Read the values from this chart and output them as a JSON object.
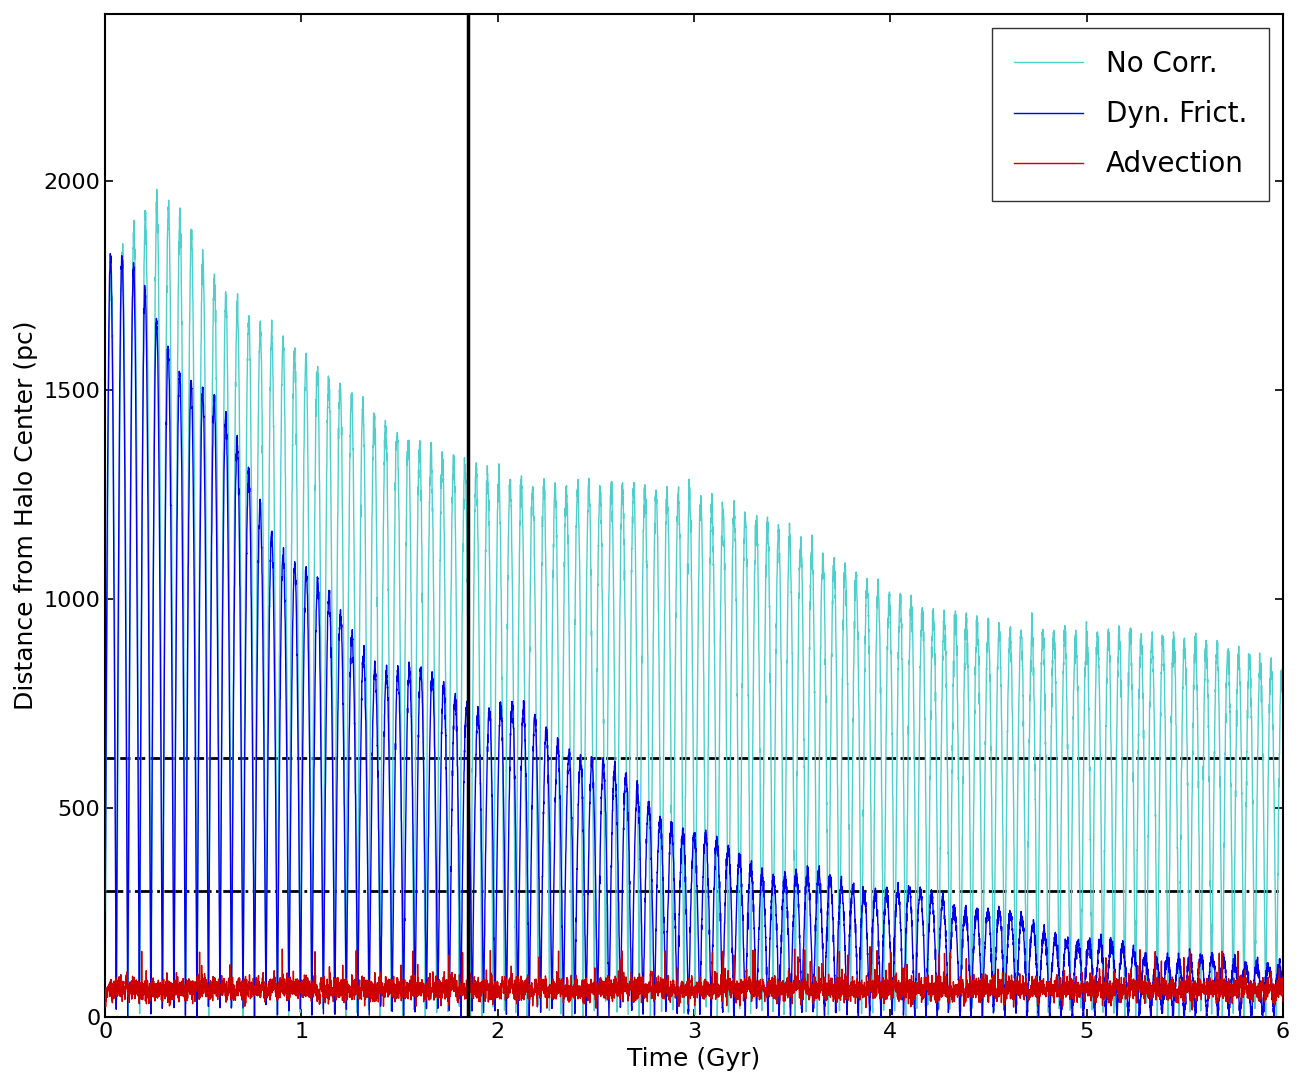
{
  "title": "",
  "xlabel": "Time (Gyr)",
  "ylabel": "Distance from Halo Center (pc)",
  "xlim": [
    0,
    6
  ],
  "ylim": [
    0,
    2400
  ],
  "yticks": [
    0,
    500,
    1000,
    1500,
    2000
  ],
  "xticks": [
    0,
    1,
    2,
    3,
    4,
    5,
    6
  ],
  "vline_x": 1.85,
  "hline1_y": 620,
  "hline2_y": 300,
  "color_no_corr": "#4DD0CC",
  "color_dyn_frict": "#0000EE",
  "color_advection": "#CC0000",
  "legend_labels": [
    "No Corr.",
    "Dyn. Frict.",
    "Advection"
  ],
  "legend_loc": "upper right",
  "figsize": [
    13.04,
    10.85
  ],
  "dpi": 100,
  "linewidth_main": 1.0,
  "vline_color": "black",
  "vline_lw": 2.5,
  "hline_color": "black",
  "hline_lw": 2.0,
  "hline1_style": "--",
  "hline2_style": "-.",
  "font_size": 18,
  "tick_font_size": 16,
  "legend_fontsize": 20
}
